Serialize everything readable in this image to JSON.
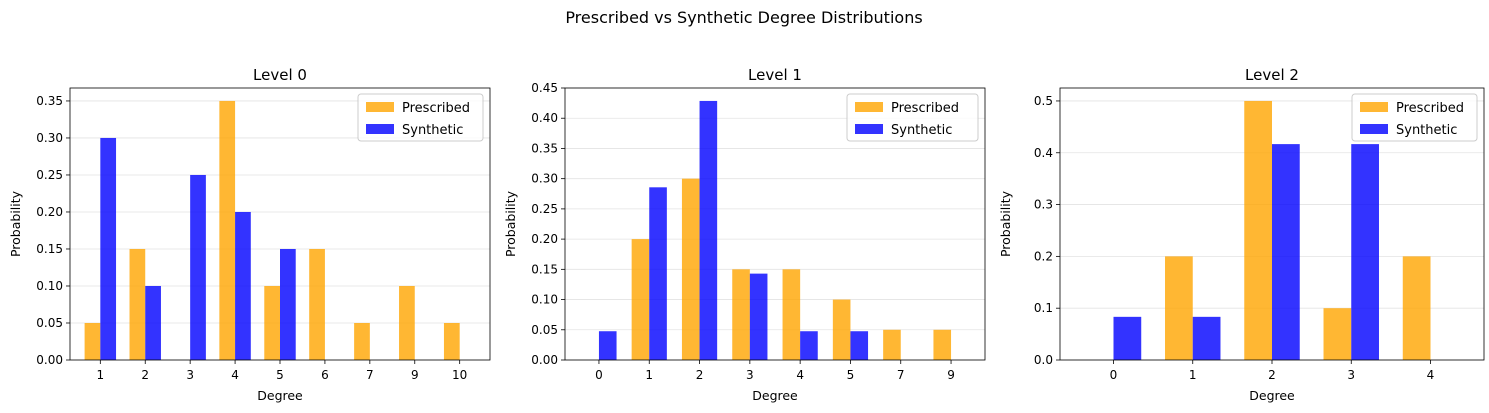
{
  "figure": {
    "title": "Prescribed vs Synthetic Degree Distributions"
  },
  "colors": {
    "prescribed": "#FFA500",
    "synthetic": "#0000FF"
  },
  "chart_data": [
    {
      "type": "bar",
      "title": "Level 0",
      "xlabel": "Degree",
      "ylabel": "Probability",
      "categories": [
        "1",
        "2",
        "3",
        "4",
        "5",
        "6",
        "7",
        "9",
        "10"
      ],
      "series": [
        {
          "name": "Prescribed",
          "values": [
            0.05,
            0.15,
            0.0,
            0.35,
            0.1,
            0.15,
            0.05,
            0.1,
            0.05
          ]
        },
        {
          "name": "Synthetic",
          "values": [
            0.3,
            0.1,
            0.25,
            0.2,
            0.15,
            0.0,
            0.0,
            0.0,
            0.0
          ]
        }
      ],
      "ylim": [
        0,
        0.3675
      ],
      "yticks": [
        "0.00",
        "0.05",
        "0.10",
        "0.15",
        "0.20",
        "0.25",
        "0.30",
        "0.35"
      ],
      "grid": "y",
      "legend": "upper right"
    },
    {
      "type": "bar",
      "title": "Level 1",
      "xlabel": "Degree",
      "ylabel": "Probability",
      "categories": [
        "0",
        "1",
        "2",
        "3",
        "4",
        "5",
        "7",
        "9"
      ],
      "series": [
        {
          "name": "Prescribed",
          "values": [
            0.0,
            0.2,
            0.3,
            0.15,
            0.15,
            0.1,
            0.05,
            0.05
          ]
        },
        {
          "name": "Synthetic",
          "values": [
            0.0476,
            0.2857,
            0.4286,
            0.1429,
            0.0476,
            0.0476,
            0.0,
            0.0
          ]
        }
      ],
      "ylim": [
        0,
        0.45
      ],
      "yticks": [
        "0.00",
        "0.05",
        "0.10",
        "0.15",
        "0.20",
        "0.25",
        "0.30",
        "0.35",
        "0.40",
        "0.45"
      ],
      "grid": "y",
      "legend": "upper right"
    },
    {
      "type": "bar",
      "title": "Level 2",
      "xlabel": "Degree",
      "ylabel": "Probability",
      "categories": [
        "0",
        "1",
        "2",
        "3",
        "4"
      ],
      "series": [
        {
          "name": "Prescribed",
          "values": [
            0.0,
            0.2,
            0.5,
            0.1,
            0.2
          ]
        },
        {
          "name": "Synthetic",
          "values": [
            0.0833,
            0.0833,
            0.4167,
            0.4167,
            0.0
          ]
        }
      ],
      "ylim": [
        0,
        0.525
      ],
      "yticks": [
        "0.0",
        "0.1",
        "0.2",
        "0.3",
        "0.4",
        "0.5"
      ],
      "grid": "y",
      "legend": "upper right"
    }
  ]
}
